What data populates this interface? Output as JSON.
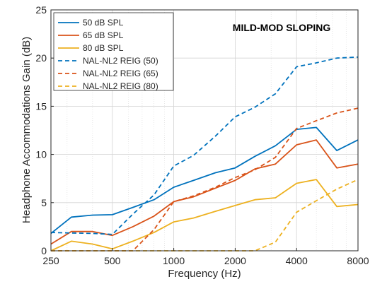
{
  "chart_data": {
    "type": "line",
    "title": "",
    "annotation": "MILD-MOD SLOPING",
    "xlabel": "Frequency (Hz)",
    "ylabel": "Headphone Accommodations Gain (dB)",
    "xscale": "log",
    "xlim": [
      250,
      8000
    ],
    "ylim": [
      0,
      25
    ],
    "xticks": [
      250,
      500,
      1000,
      2000,
      4000,
      8000
    ],
    "xtick_labels": [
      "250",
      "500",
      "1000",
      "2000",
      "4000",
      "8000"
    ],
    "yticks": [
      0,
      5,
      10,
      15,
      20,
      25
    ],
    "ytick_labels": [
      "0",
      "5",
      "10",
      "15",
      "20",
      "25"
    ],
    "grid": true,
    "legend_position": "top-left",
    "series": [
      {
        "name": "50 dB SPL",
        "color": "#0072BD",
        "style": "solid",
        "x": [
          250,
          315,
          400,
          500,
          630,
          800,
          1000,
          1250,
          1600,
          2000,
          2500,
          3150,
          4000,
          5000,
          6300,
          8000
        ],
        "y": [
          1.8,
          3.5,
          3.7,
          3.75,
          4.5,
          5.3,
          6.6,
          7.3,
          8.1,
          8.6,
          9.8,
          10.9,
          12.6,
          12.8,
          10.4,
          11.5
        ]
      },
      {
        "name": "65 dB SPL",
        "color": "#D95319",
        "style": "solid",
        "x": [
          250,
          315,
          400,
          500,
          630,
          800,
          1000,
          1250,
          1600,
          2000,
          2500,
          3150,
          4000,
          5000,
          6300,
          8000
        ],
        "y": [
          0.7,
          2.0,
          2.0,
          1.6,
          2.5,
          3.6,
          5.1,
          5.6,
          6.5,
          7.3,
          8.5,
          9.0,
          11.0,
          11.5,
          8.6,
          9.0
        ]
      },
      {
        "name": "80 dB SPL",
        "color": "#EDB120",
        "style": "solid",
        "x": [
          250,
          315,
          400,
          500,
          630,
          800,
          1000,
          1250,
          1600,
          2000,
          2500,
          3150,
          4000,
          5000,
          6300,
          8000
        ],
        "y": [
          0,
          1.0,
          0.7,
          0.2,
          1.0,
          1.9,
          3.0,
          3.4,
          4.1,
          4.7,
          5.3,
          5.5,
          7.0,
          7.4,
          4.6,
          4.8
        ]
      },
      {
        "name": "NAL-NL2 REIG (50)",
        "color": "#0072BD",
        "style": "dashed",
        "x": [
          250,
          315,
          400,
          500,
          630,
          800,
          1000,
          1250,
          1600,
          2000,
          2500,
          3150,
          4000,
          5000,
          6300,
          8000
        ],
        "y": [
          1.9,
          1.85,
          1.8,
          1.7,
          3.8,
          5.8,
          8.8,
          9.9,
          11.9,
          13.9,
          14.9,
          16.3,
          19.1,
          19.5,
          20.0,
          20.1
        ]
      },
      {
        "name": "NAL-NL2 REIG (65)",
        "color": "#D95319",
        "style": "dashed",
        "x": [
          250,
          315,
          400,
          500,
          630,
          800,
          1000,
          1250,
          1600,
          2000,
          2500,
          3150,
          4000,
          5000,
          6300,
          8000
        ],
        "y": [
          0,
          0,
          0,
          0,
          0,
          2.2,
          5.1,
          5.7,
          6.6,
          7.6,
          8.4,
          9.7,
          12.7,
          13.5,
          14.3,
          14.8
        ]
      },
      {
        "name": "NAL-NL2 REIG (80)",
        "color": "#EDB120",
        "style": "dashed",
        "x": [
          250,
          315,
          400,
          500,
          630,
          800,
          1000,
          1250,
          1600,
          2000,
          2500,
          3150,
          4000,
          5000,
          6300,
          8000
        ],
        "y": [
          0,
          0,
          0,
          0,
          0,
          0,
          0,
          0,
          0,
          0,
          0,
          0.9,
          4.0,
          5.2,
          6.4,
          7.4
        ]
      }
    ]
  }
}
